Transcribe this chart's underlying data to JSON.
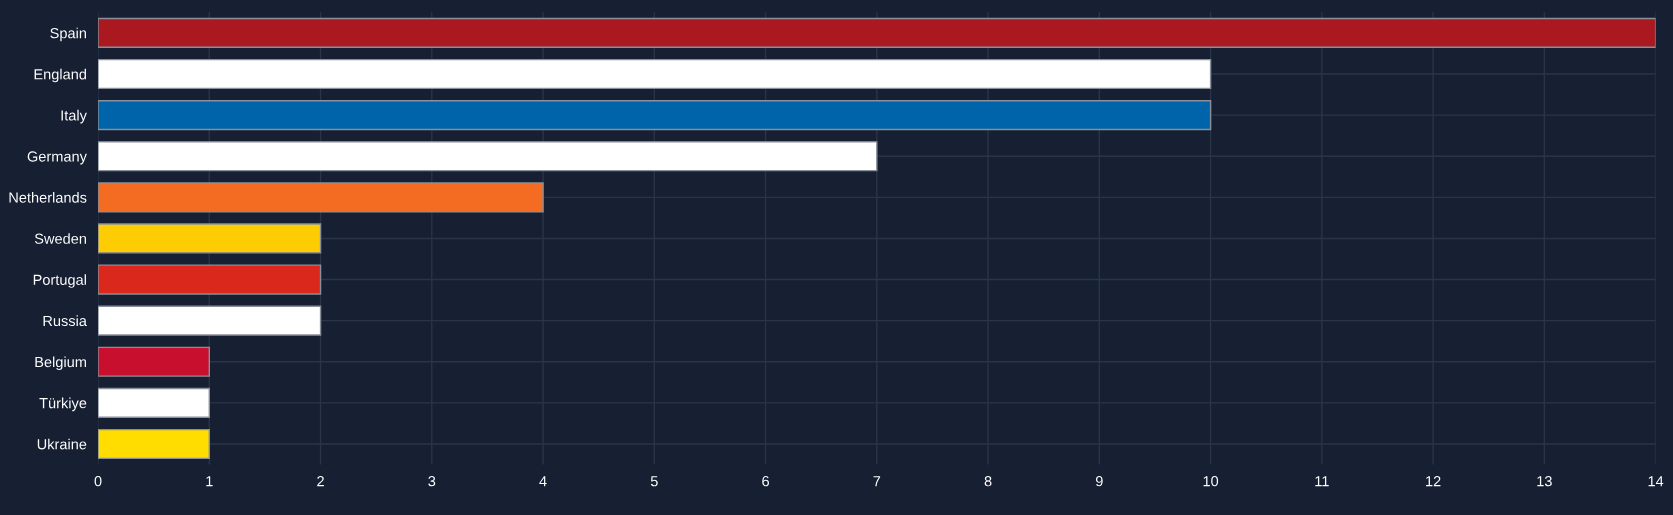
{
  "chart_data": {
    "type": "bar",
    "orientation": "horizontal",
    "categories": [
      "Spain",
      "England",
      "Italy",
      "Germany",
      "Netherlands",
      "Sweden",
      "Portugal",
      "Russia",
      "Belgium",
      "Türkiye",
      "Ukraine"
    ],
    "values": [
      14,
      10,
      10,
      7,
      4,
      2,
      2,
      2,
      1,
      1,
      1
    ],
    "colors": [
      "#aa1820",
      "#ffffff",
      "#0064aa",
      "#ffffff",
      "#f36c21",
      "#fecc02",
      "#da291c",
      "#ffffff",
      "#c8102e",
      "#ffffff",
      "#ffdd00"
    ],
    "xlim": [
      0,
      14
    ],
    "xticks": [
      0,
      1,
      2,
      3,
      4,
      5,
      6,
      7,
      8,
      9,
      10,
      11,
      12,
      13,
      14
    ],
    "grid": true,
    "legend": false
  }
}
